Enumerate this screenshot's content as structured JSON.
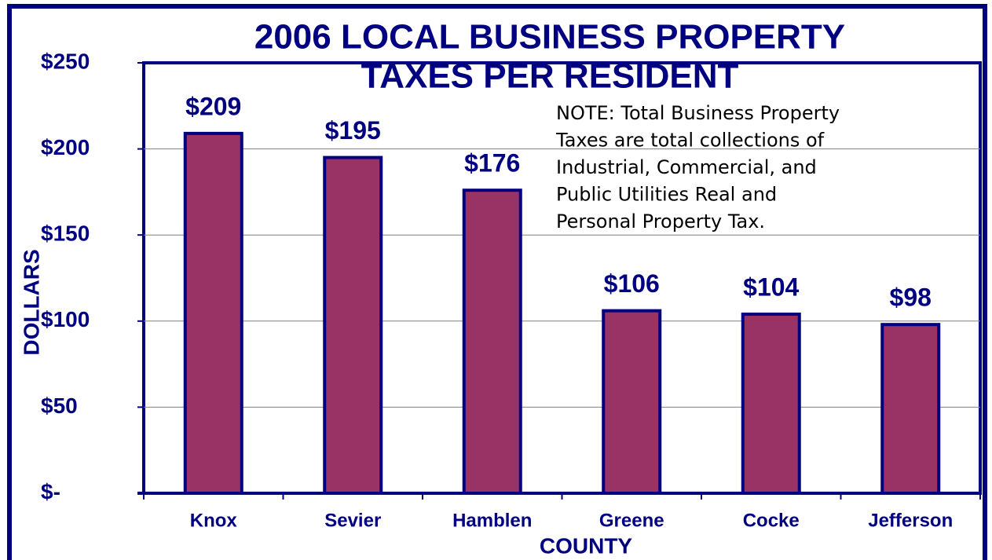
{
  "chart_data": {
    "type": "bar",
    "title": [
      "2006 LOCAL BUSINESS PROPERTY",
      "TAXES PER RESIDENT"
    ],
    "annotation": [
      "NOTE: Total Business Property",
      "Taxes are total collections of",
      "Industrial,  Commercial, and",
      "Public Utilities Real and",
      "Personal Property Tax."
    ],
    "x_label": "COUNTY",
    "y_label": "DOLLARS",
    "categories": [
      "Knox",
      "Sevier",
      "Hamblen",
      "Greene",
      "Cocke",
      "Jefferson"
    ],
    "values": [
      209,
      195,
      176,
      106,
      104,
      98
    ],
    "value_labels": [
      "$209",
      "$195",
      "$176",
      "$106",
      "$104",
      "$98"
    ],
    "color": "#993366",
    "ylim": [
      0,
      250
    ],
    "yticks": [
      {
        "value": 0,
        "label": "$-"
      },
      {
        "value": 50,
        "label": "$50"
      },
      {
        "value": 100,
        "label": "$100"
      },
      {
        "value": 150,
        "label": "$150"
      },
      {
        "value": 200,
        "label": "$200"
      },
      {
        "value": 250,
        "label": "$250"
      }
    ],
    "grid": true
  }
}
